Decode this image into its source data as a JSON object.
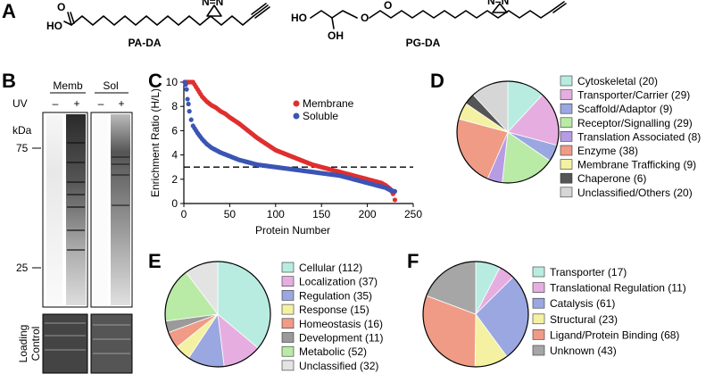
{
  "panels": {
    "a": "A",
    "b": "B",
    "c": "C",
    "d": "D",
    "e": "E",
    "f": "F"
  },
  "structures": {
    "pa_da": {
      "name": "PA-DA",
      "ho": "HO",
      "o": "O",
      "diazirine": "N=N"
    },
    "pg_da": {
      "name": "PG-DA",
      "ho": "HO",
      "oh": "OH",
      "o_ester": "O",
      "o_carbonyl": "O",
      "diazirine": "N=N"
    }
  },
  "gel": {
    "uv_label": "UV",
    "kda_label": "kDa",
    "lanes": [
      {
        "name": "Memb",
        "minus": "–",
        "plus": "+"
      },
      {
        "name": "Sol",
        "minus": "–",
        "plus": "+"
      }
    ],
    "markers": [
      "75",
      "25"
    ],
    "loading_label_line1": "Loading",
    "loading_label_line2": "Control"
  },
  "colors": {
    "membrane": "#e02f2f",
    "soluble": "#3a55b4",
    "cytoskeletal": "#b8ece0",
    "transporter": "#e6aee0",
    "scaffold": "#9aa7e0",
    "receptor": "#b9eaa6",
    "translation": "#b79ce4",
    "enzyme": "#ef9b86",
    "trafficking": "#f4f2a2",
    "chaperone": "#555555",
    "unclassified": "#d6d6d6"
  },
  "chart_data": [
    {
      "panel": "C",
      "type": "scatter",
      "xlabel": "Protein Number",
      "ylabel": "Enrichment Ratio (H/L)",
      "xlim": [
        0,
        250
      ],
      "ylim": [
        0,
        10
      ],
      "xticks": [
        0,
        50,
        100,
        150,
        200,
        250
      ],
      "yticks": [
        0,
        2,
        4,
        6,
        8,
        10
      ],
      "threshold": 3,
      "legend_placement": "top-right",
      "series": [
        {
          "name": "Membrane",
          "color": "#e02f2f",
          "x": [
            1,
            5,
            10,
            15,
            20,
            25,
            30,
            35,
            40,
            45,
            50,
            60,
            70,
            80,
            90,
            100,
            110,
            120,
            130,
            140,
            150,
            160,
            170,
            180,
            190,
            200,
            205,
            210,
            215,
            220,
            225,
            228,
            230
          ],
          "y": [
            10,
            10,
            10,
            9.4,
            8.8,
            8.4,
            8.1,
            7.9,
            7.6,
            7.4,
            7.1,
            6.6,
            6.0,
            5.4,
            4.9,
            4.4,
            4.1,
            3.8,
            3.5,
            3.2,
            3.0,
            2.8,
            2.6,
            2.4,
            2.2,
            2.0,
            1.9,
            1.8,
            1.7,
            1.5,
            1.2,
            0.8,
            0.3
          ]
        },
        {
          "name": "Soluble",
          "color": "#3a55b4",
          "x": [
            1,
            2,
            3,
            4,
            5,
            6,
            8,
            10,
            15,
            20,
            25,
            30,
            40,
            50,
            60,
            70,
            80,
            90,
            100,
            110,
            120,
            130,
            140,
            150,
            160,
            170,
            180,
            190,
            200,
            210,
            220,
            225,
            230
          ],
          "y": [
            10,
            9.8,
            9.4,
            8.6,
            8.2,
            7.6,
            6.9,
            6.4,
            5.8,
            5.3,
            4.9,
            4.6,
            4.2,
            3.9,
            3.6,
            3.4,
            3.2,
            3.1,
            3.0,
            2.9,
            2.8,
            2.7,
            2.6,
            2.5,
            2.4,
            2.3,
            2.1,
            1.9,
            1.7,
            1.5,
            1.3,
            1.1,
            1.0
          ]
        }
      ]
    },
    {
      "panel": "D",
      "type": "pie",
      "categories": [
        "Cytoskeletal (20)",
        "Transporter/Carrier (29)",
        "Scaffold/Adaptor (9)",
        "Receptor/Signalling (29)",
        "Translation Associated (8)",
        "Enzyme (38)",
        "Membrane Trafficking (9)",
        "Chaperone (6)",
        "Unclassified/Others (20)"
      ],
      "values": [
        20,
        29,
        9,
        29,
        8,
        38,
        9,
        6,
        20
      ],
      "colors": [
        "#b8ece0",
        "#e6aee0",
        "#9aa7e0",
        "#b9eaa6",
        "#b79ce4",
        "#ef9b86",
        "#f4f2a2",
        "#555555",
        "#d6d6d6"
      ]
    },
    {
      "panel": "E",
      "type": "pie",
      "categories": [
        "Cellular (112)",
        "Localization (37)",
        "Regulation (35)",
        "Response (15)",
        "Homeostasis (16)",
        "Development (11)",
        "Metabolic (52)",
        "Unclassified (32)"
      ],
      "legend_visible": [
        "Cellular (112)",
        "Localization (37)",
        "Regulation (35)",
        "Response (15)",
        "Homeostasis (16)",
        "Development (11)",
        "Metabolic (52)",
        "Unclassified (32)"
      ],
      "values": [
        112,
        37,
        35,
        15,
        16,
        11,
        52,
        32
      ],
      "colors": [
        "#b8ece0",
        "#e6aee0",
        "#9aa7e0",
        "#f4f2a2",
        "#ef9b86",
        "#9a9a9a",
        "#b9eaa6",
        "#e3e3e3"
      ]
    },
    {
      "panel": "F",
      "type": "pie",
      "categories": [
        "Transporter (17)",
        "Translational Regulation (11)",
        "Catalysis (61)",
        "Structural (23)",
        "Ligand/Protein Binding (68)",
        "Unknown (43)"
      ],
      "values": [
        17,
        11,
        61,
        23,
        68,
        43
      ],
      "colors": [
        "#b8ece0",
        "#e6aee0",
        "#9aa7e0",
        "#f4f2a2",
        "#ef9b86",
        "#a6a6a6"
      ]
    }
  ]
}
